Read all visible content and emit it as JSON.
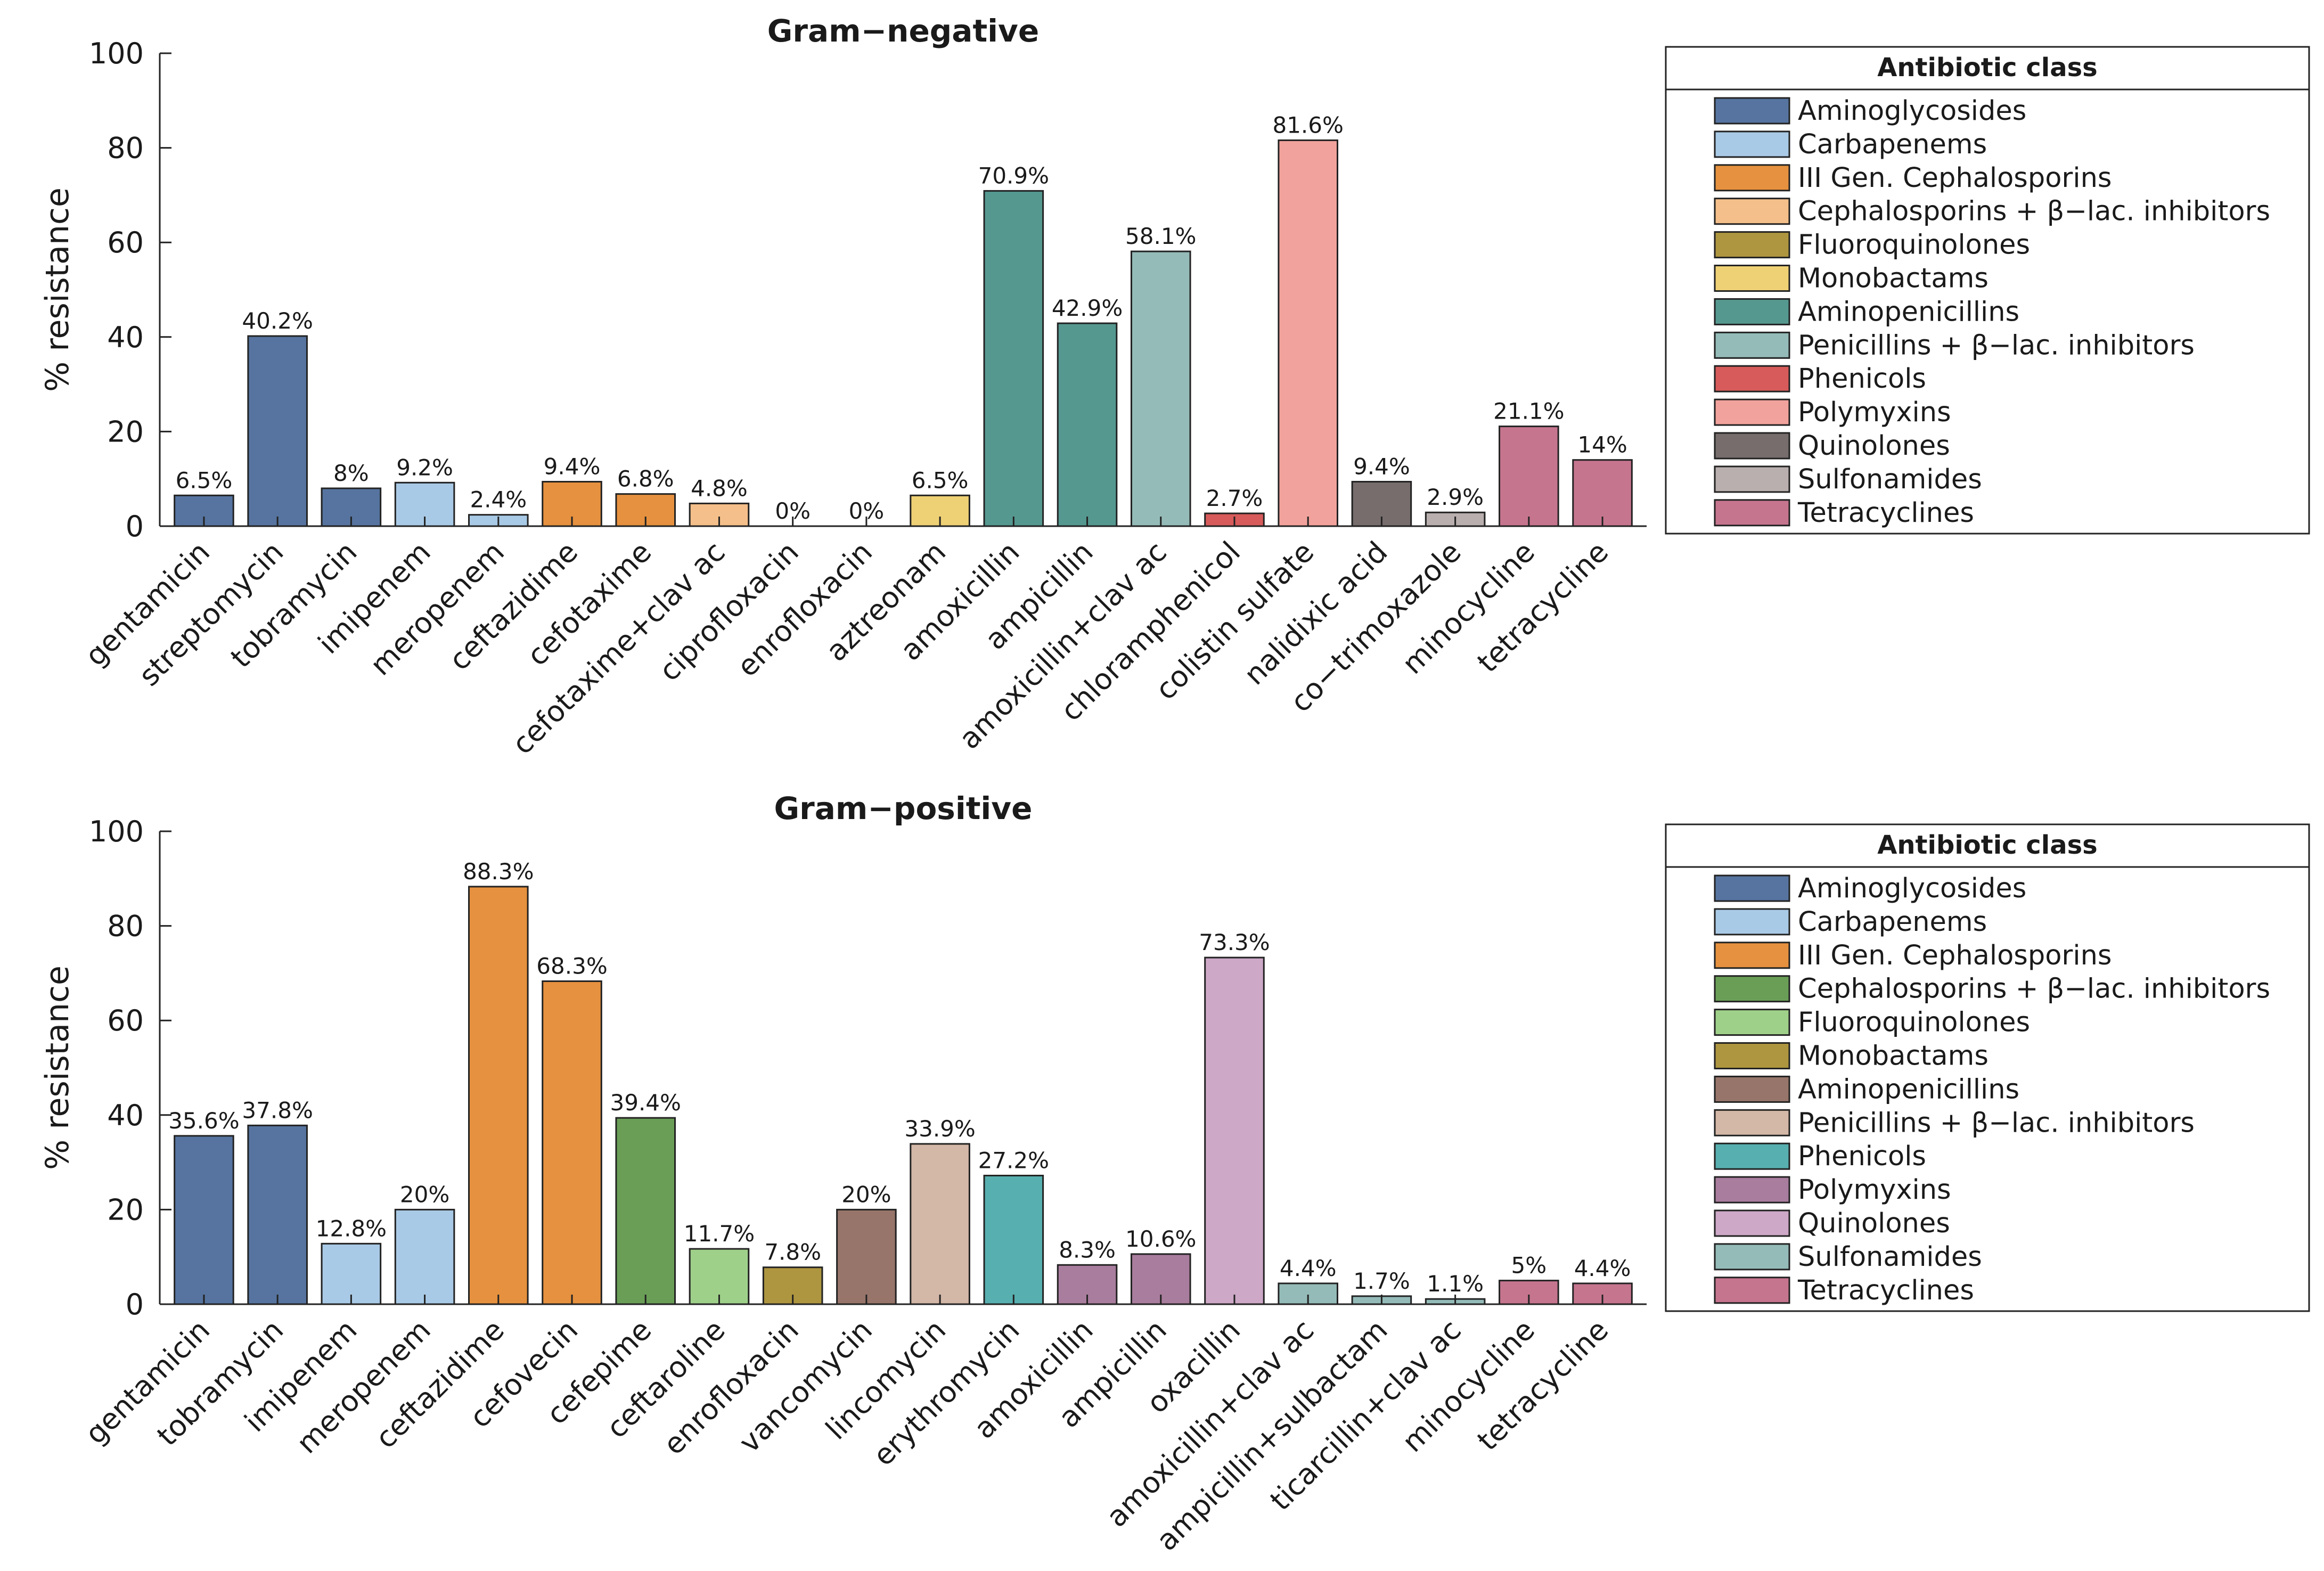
{
  "chart_data": [
    {
      "type": "bar",
      "title": "Gram−negative",
      "xlabel": "",
      "ylabel": "% resistance",
      "ylim": [
        0,
        100
      ],
      "yticks": [
        "0",
        "20",
        "40",
        "60",
        "80",
        "100"
      ],
      "grid": false,
      "categories": [
        "gentamicin",
        "streptomycin",
        "tobramycin",
        "imipenem",
        "meropenem",
        "ceftazidime",
        "cefotaxime",
        "cefotaxime+clav ac",
        "ciprofloxacin",
        "enrofloxacin",
        "aztreonam",
        "amoxicillin",
        "ampicillin",
        "amoxicillin+clav ac",
        "chloramphenicol",
        "colistin sulfate",
        "nalidixic acid",
        "co−trimoxazole",
        "minocycline",
        "tetracycline"
      ],
      "values": [
        6.5,
        40.2,
        8,
        9.2,
        2.4,
        9.4,
        6.8,
        4.8,
        0,
        0,
        6.5,
        70.9,
        42.9,
        58.1,
        2.7,
        81.6,
        9.4,
        2.9,
        21.1,
        14
      ],
      "value_labels": [
        "6.5%",
        "40.2%",
        "8%",
        "9.2%",
        "2.4%",
        "9.4%",
        "6.8%",
        "4.8%",
        "0%",
        "0%",
        "6.5%",
        "70.9%",
        "42.9%",
        "58.1%",
        "2.7%",
        "81.6%",
        "9.4%",
        "2.9%",
        "21.1%",
        "14%"
      ],
      "bar_classes": [
        0,
        0,
        0,
        1,
        1,
        2,
        2,
        3,
        4,
        4,
        5,
        6,
        6,
        7,
        8,
        9,
        10,
        11,
        12,
        12
      ],
      "legend": {
        "title": "Antibiotic class",
        "position": "right",
        "entries": [
          {
            "label": "Aminoglycosides",
            "color": "#56749f"
          },
          {
            "label": "Carbapenems",
            "color": "#a9cae6"
          },
          {
            "label": "III Gen. Cephalosporins",
            "color": "#e6913f"
          },
          {
            "label": "Cephalosporins + β−lac. inhibitors",
            "color": "#f4bf8a"
          },
          {
            "label": "Fluoroquinolones",
            "color": "#ae9640"
          },
          {
            "label": "Monobactams",
            "color": "#eed175"
          },
          {
            "label": "Aminopenicillins",
            "color": "#559890"
          },
          {
            "label": "Penicillins + β−lac. inhibitors",
            "color": "#94bbb8"
          },
          {
            "label": "Phenicols",
            "color": "#d75b5b"
          },
          {
            "label": "Polymyxins",
            "color": "#f2a29c"
          },
          {
            "label": "Quinolones",
            "color": "#776d6d"
          },
          {
            "label": "Sulfonamides",
            "color": "#b8afae"
          },
          {
            "label": "Tetracyclines",
            "color": "#c6758f"
          }
        ]
      }
    },
    {
      "type": "bar",
      "title": "Gram−positive",
      "xlabel": "",
      "ylabel": "% resistance",
      "ylim": [
        0,
        100
      ],
      "yticks": [
        "0",
        "20",
        "40",
        "60",
        "80",
        "100"
      ],
      "grid": false,
      "categories": [
        "gentamicin",
        "tobramycin",
        "imipenem",
        "meropenem",
        "ceftazidime",
        "cefovecin",
        "cefepime",
        "ceftaroline",
        "enrofloxacin",
        "vancomycin",
        "lincomycin",
        "erythromycin",
        "amoxicillin",
        "ampicillin",
        "oxacillin",
        "amoxicillin+clav ac",
        "ampicillin+sulbactam",
        "ticarcillin+clav ac",
        "minocycline",
        "tetracycline"
      ],
      "values": [
        35.6,
        37.8,
        12.8,
        20,
        88.3,
        68.3,
        39.4,
        11.7,
        7.8,
        20,
        33.9,
        27.2,
        8.3,
        10.6,
        73.3,
        4.4,
        1.7,
        1.1,
        5,
        4.4
      ],
      "value_labels": [
        "35.6%",
        "37.8%",
        "12.8%",
        "20%",
        "88.3%",
        "68.3%",
        "39.4%",
        "11.7%",
        "7.8%",
        "20%",
        "33.9%",
        "27.2%",
        "8.3%",
        "10.6%",
        "73.3%",
        "4.4%",
        "1.7%",
        "1.1%",
        "5%",
        "4.4%"
      ],
      "bar_classes": [
        0,
        0,
        1,
        1,
        2,
        2,
        3,
        4,
        5,
        6,
        7,
        8,
        9,
        9,
        10,
        11,
        11,
        11,
        12,
        12
      ],
      "legend": {
        "title": "Antibiotic class",
        "position": "right",
        "entries": [
          {
            "label": "Aminoglycosides",
            "color": "#56749f"
          },
          {
            "label": "Carbapenems",
            "color": "#a9cae6"
          },
          {
            "label": "III Gen. Cephalosporins",
            "color": "#e6913f"
          },
          {
            "label": "Cephalosporins + β−lac. inhibitors",
            "color": "#6a9e57"
          },
          {
            "label": "Fluoroquinolones",
            "color": "#9fd08a"
          },
          {
            "label": "Monobactams",
            "color": "#ae9640"
          },
          {
            "label": "Aminopenicillins",
            "color": "#97756a"
          },
          {
            "label": "Penicillins + β−lac. inhibitors",
            "color": "#d3b7a7"
          },
          {
            "label": "Phenicols",
            "color": "#58afaf"
          },
          {
            "label": "Polymyxins",
            "color": "#a97d9e"
          },
          {
            "label": "Quinolones",
            "color": "#cda8c7"
          },
          {
            "label": "Sulfonamides",
            "color": "#94bbb8"
          },
          {
            "label": "Tetracyclines",
            "color": "#c6758f"
          }
        ]
      }
    }
  ]
}
